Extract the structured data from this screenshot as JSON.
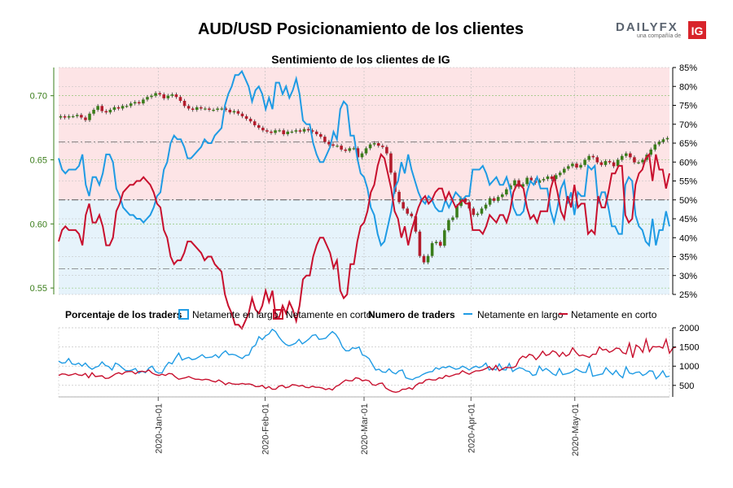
{
  "header": {
    "title": "AUD/USD Posicionamiento de los clientes",
    "logo_main": "DAILYFX",
    "logo_sub": "una compañía de",
    "logo_badge": "IG"
  },
  "chart_data": [
    {
      "type": "line",
      "title": "Sentimiento de los clientes de IG",
      "price_axis": {
        "ticks": [
          "0.55",
          "0.60",
          "0.65",
          "0.70"
        ],
        "ylim": [
          0.545,
          0.722
        ]
      },
      "sentiment_axis": {
        "ticks": [
          "25%",
          "30%",
          "35%",
          "40%",
          "45%",
          "50%",
          "55%",
          "60%",
          "65%",
          "70%",
          "75%",
          "80%",
          "85%"
        ],
        "ylim": [
          25,
          85
        ]
      },
      "threshold_percent": 50,
      "reference_prices": [
        0.664,
        0.565
      ],
      "series": [
        {
          "name": "Netamente en largo",
          "color": "#1f9be4",
          "values": [
            61,
            58,
            57,
            58,
            58,
            58,
            59,
            62,
            54,
            51,
            56,
            56,
            54,
            57,
            62,
            62,
            60,
            53,
            51,
            48,
            47,
            46,
            46,
            45,
            45,
            44,
            45,
            46,
            48,
            51,
            52,
            58,
            60,
            65,
            67,
            66,
            66,
            64,
            61,
            61,
            62,
            63,
            64,
            66,
            65,
            65,
            67,
            68,
            69,
            75,
            78,
            80,
            83,
            83,
            84,
            82,
            80,
            76,
            79,
            80,
            78,
            74,
            77,
            74,
            81,
            81,
            78,
            80,
            77,
            79,
            82,
            78,
            71,
            70,
            70,
            65,
            62,
            60,
            60,
            62,
            64,
            68,
            66,
            74,
            76,
            75,
            67,
            67,
            61,
            57,
            56,
            53,
            48,
            46,
            41,
            38,
            39,
            43,
            47,
            53,
            55,
            60,
            57,
            62,
            58,
            55,
            52,
            50,
            49,
            51,
            50,
            48,
            47,
            47,
            50,
            48,
            50,
            52,
            51,
            50,
            51,
            51,
            58,
            58,
            58,
            59,
            57,
            54,
            55,
            56,
            54,
            54,
            56,
            53,
            48,
            46,
            46,
            47,
            52,
            55,
            54,
            56,
            53,
            53,
            53,
            47,
            44,
            48,
            53,
            55,
            49,
            52,
            46,
            52,
            51,
            51,
            59,
            58,
            59,
            49,
            52,
            52,
            48,
            43,
            43,
            41,
            41,
            54,
            56,
            55,
            46,
            43,
            42,
            39,
            38,
            45,
            38,
            42,
            42,
            47,
            43
          ]
        },
        {
          "name": "Netamente en corto",
          "color": "#c8102e",
          "values": [
            39,
            42,
            43,
            42,
            42,
            42,
            41,
            38,
            46,
            49,
            44,
            44,
            46,
            43,
            38,
            38,
            40,
            47,
            49,
            52,
            53,
            54,
            54,
            55,
            55,
            56,
            55,
            54,
            52,
            49,
            48,
            42,
            40,
            35,
            33,
            34,
            34,
            36,
            39,
            39,
            38,
            37,
            36,
            34,
            35,
            35,
            33,
            32,
            31,
            25,
            22,
            20,
            17,
            17,
            16,
            18,
            20,
            24,
            21,
            20,
            22,
            26,
            23,
            26,
            19,
            19,
            22,
            20,
            23,
            21,
            18,
            22,
            29,
            30,
            30,
            35,
            38,
            40,
            40,
            38,
            36,
            32,
            34,
            26,
            24,
            25,
            33,
            33,
            39,
            43,
            44,
            47,
            52,
            54,
            59,
            62,
            61,
            57,
            53,
            47,
            45,
            40,
            43,
            38,
            42,
            45,
            48,
            50,
            51,
            49,
            50,
            52,
            53,
            53,
            50,
            52,
            50,
            48,
            49,
            50,
            49,
            49,
            42,
            42,
            42,
            41,
            43,
            46,
            45,
            44,
            46,
            46,
            44,
            47,
            52,
            54,
            54,
            53,
            48,
            45,
            46,
            44,
            47,
            47,
            47,
            53,
            56,
            52,
            47,
            45,
            51,
            48,
            54,
            48,
            49,
            49,
            41,
            42,
            41,
            51,
            48,
            48,
            52,
            57,
            57,
            59,
            59,
            46,
            44,
            45,
            54,
            57,
            58,
            61,
            62,
            55,
            62,
            58,
            58,
            53,
            57
          ]
        }
      ],
      "price_close": [
        0.684,
        0.683,
        0.684,
        0.684,
        0.685,
        0.683,
        0.681,
        0.686,
        0.689,
        0.692,
        0.688,
        0.687,
        0.689,
        0.691,
        0.69,
        0.692,
        0.692,
        0.694,
        0.695,
        0.694,
        0.697,
        0.699,
        0.7,
        0.702,
        0.701,
        0.698,
        0.7,
        0.701,
        0.699,
        0.696,
        0.692,
        0.69,
        0.689,
        0.691,
        0.69,
        0.69,
        0.689,
        0.689,
        0.69,
        0.69,
        0.689,
        0.687,
        0.688,
        0.686,
        0.684,
        0.682,
        0.68,
        0.677,
        0.675,
        0.673,
        0.672,
        0.671,
        0.673,
        0.673,
        0.67,
        0.672,
        0.672,
        0.673,
        0.672,
        0.674,
        0.673,
        0.672,
        0.67,
        0.668,
        0.664,
        0.662,
        0.661,
        0.661,
        0.658,
        0.657,
        0.659,
        0.659,
        0.652,
        0.655,
        0.659,
        0.662,
        0.663,
        0.661,
        0.66,
        0.655,
        0.64,
        0.625,
        0.617,
        0.612,
        0.608,
        0.606,
        0.594,
        0.575,
        0.57,
        0.575,
        0.585,
        0.586,
        0.583,
        0.595,
        0.603,
        0.605,
        0.614,
        0.62,
        0.617,
        0.612,
        0.607,
        0.608,
        0.612,
        0.615,
        0.62,
        0.618,
        0.621,
        0.623,
        0.627,
        0.63,
        0.634,
        0.629,
        0.631,
        0.636,
        0.634,
        0.632,
        0.634,
        0.635,
        0.637,
        0.635,
        0.638,
        0.64,
        0.643,
        0.645,
        0.647,
        0.644,
        0.646,
        0.65,
        0.653,
        0.652,
        0.648,
        0.646,
        0.649,
        0.648,
        0.645,
        0.65,
        0.653,
        0.655,
        0.652,
        0.648,
        0.648,
        0.65,
        0.654,
        0.658,
        0.662,
        0.664,
        0.666,
        0.667
      ],
      "x_ticks": [
        "2020-Jan-01",
        "2020-Feb-01",
        "2020-Mar-01",
        "2020-Apr-01",
        "2020-May-01"
      ]
    },
    {
      "type": "line",
      "title": "Numero de traders",
      "y_ticks": [
        "500",
        "1000",
        "1500",
        "2000"
      ],
      "ylim": [
        200,
        2000
      ],
      "series": [
        {
          "name": "Netamente en largo",
          "color": "#1f9be4",
          "values": [
            1130,
            1080,
            1090,
            1200,
            1060,
            1040,
            1080,
            1000,
            1080,
            980,
            920,
            970,
            1000,
            1110,
            1020,
            990,
            900,
            1080,
            1040,
            960,
            890,
            880,
            900,
            940,
            820,
            870,
            830,
            950,
            1000,
            860,
            820,
            830,
            990,
            1100,
            1060,
            1210,
            1340,
            1160,
            1200,
            1230,
            1170,
            1190,
            1240,
            1300,
            1220,
            1230,
            1240,
            1300,
            1220,
            1330,
            1400,
            1300,
            1310,
            1290,
            1240,
            1200,
            1280,
            1290,
            1490,
            1550,
            1770,
            1690,
            1790,
            1840,
            1960,
            1900,
            1760,
            1650,
            1570,
            1530,
            1560,
            1600,
            1700,
            1580,
            1640,
            1710,
            1800,
            1820,
            1700,
            1710,
            1730,
            1820,
            1900,
            1830,
            1700,
            1500,
            1400,
            1400,
            1480,
            1460,
            1500,
            1290,
            1260,
            1200,
            1050,
            900,
            920,
            850,
            840,
            930,
            840,
            800,
            880,
            900,
            700,
            670,
            650,
            700,
            720,
            780,
            820,
            850,
            860,
            960,
            920,
            980,
            960,
            1000,
            960,
            920,
            940,
            1000,
            960,
            900,
            960,
            1000,
            960,
            1000,
            1080,
            900,
            940,
            900,
            1060,
            910,
            900,
            1070,
            860,
            920,
            960,
            940,
            880,
            860,
            760,
            780,
            1000,
            880,
            940,
            880,
            800,
            760,
            940,
            780,
            800,
            820,
            860,
            930,
            880,
            840,
            840,
            1070,
            740,
            760,
            780,
            800,
            960,
            860,
            780,
            890,
            770,
            700,
            980,
            820,
            800,
            840,
            850,
            760,
            800,
            880,
            870,
            670,
            760,
            880,
            720,
            740
          ]
        },
        {
          "name": "Netamente en corto",
          "color": "#c8102e",
          "values": [
            760,
            800,
            790,
            760,
            780,
            810,
            770,
            760,
            810,
            700,
            830,
            730,
            740,
            750,
            680,
            690,
            740,
            800,
            830,
            790,
            850,
            860,
            860,
            800,
            860,
            870,
            850,
            900,
            820,
            780,
            760,
            790,
            760,
            810,
            800,
            720,
            660,
            680,
            700,
            730,
            690,
            660,
            660,
            640,
            660,
            650,
            610,
            590,
            640,
            590,
            520,
            570,
            540,
            530,
            530,
            550,
            530,
            540,
            520,
            470,
            470,
            500,
            420,
            470,
            400,
            400,
            480,
            500,
            440,
            460,
            520,
            510,
            480,
            500,
            450,
            440,
            480,
            450,
            450,
            430,
            390,
            420,
            380,
            470,
            510,
            580,
            640,
            620,
            620,
            700,
            680,
            620,
            640,
            620,
            520,
            500,
            550,
            560,
            430,
            380,
            340,
            320,
            340,
            400,
            400,
            440,
            400,
            500,
            560,
            560,
            640,
            660,
            640,
            640,
            700,
            680,
            760,
            730,
            760,
            790,
            800,
            880,
            830,
            790,
            840,
            880,
            880,
            900,
            940,
            990,
            900,
            1020,
            880,
            930,
            970,
            960,
            960,
            1000,
            1180,
            1260,
            1220,
            1310,
            1280,
            1170,
            1260,
            1390,
            1280,
            1310,
            1400,
            1360,
            1250,
            1360,
            1260,
            1310,
            1480,
            1360,
            1270,
            1290,
            1260,
            1230,
            1310,
            1310,
            1500,
            1420,
            1440,
            1360,
            1400,
            1470,
            1460,
            1350,
            1320,
            1600,
            1220,
            1550,
            1490,
            1360,
            1700,
            1380,
            1510,
            1500,
            1510,
            1470,
            1700,
            1340,
            1470,
            1500
          ]
        }
      ],
      "x_ticks": [
        "2020-Jan-01",
        "2020-Feb-01",
        "2020-Mar-01",
        "2020-Apr-01",
        "2020-May-01"
      ]
    }
  ],
  "legend": {
    "pct_heading": "Porcentaje de los traders",
    "pct_long": "Netamente en largo",
    "pct_short": "Netamente en corto",
    "num_heading": "Numero de traders",
    "num_long": "Netamente en largo",
    "num_short": "Netamente en corto"
  },
  "colors": {
    "long": "#1f9be4",
    "short": "#c8102e",
    "long_fill": "#e6f3fb",
    "short_fill": "#fde4e6",
    "candle_up": "#3a7d1a",
    "candle_down": "#b31b2b",
    "axis_green": "#3a7d1a"
  }
}
